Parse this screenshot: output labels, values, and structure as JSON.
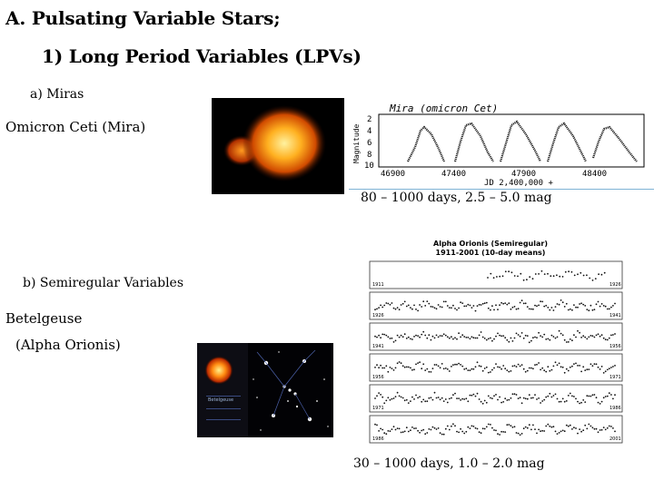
{
  "slide": {
    "title_line1": "A. Pulsating Variable Stars;",
    "title_line2": "1) Long Period Variables (LPVs)",
    "miras_heading": "a) Miras",
    "mira_star": "Omicron Ceti (Mira)",
    "mira_caption": "80 – 1000 days, 2.5 – 5.0 mag",
    "semireg_heading": "b) Semiregular Variables",
    "betelgeuse_line1": "Betelgeuse",
    "betelgeuse_line2": "(Alpha Orionis)",
    "semireg_caption": "30 – 1000 days, 1.0 – 2.0 mag"
  },
  "mira_plot": {
    "title": "Mira (omicron Cet)",
    "ylabel": "Magnitude",
    "xlabel": "JD 2,400,000 +",
    "yticks": [
      "2",
      "4",
      "6",
      "8",
      "10"
    ],
    "xticks": [
      "46900",
      "47400",
      "47900",
      "48400"
    ]
  },
  "orion_plot": {
    "title_line1": "Alpha Orionis (Semiregular)",
    "title_line2": "1911-2001 (10-day means)",
    "panels": [
      {
        "start": "1911",
        "end": "1926"
      },
      {
        "start": "1926",
        "end": "1941"
      },
      {
        "start": "1941",
        "end": "1956"
      },
      {
        "start": "1956",
        "end": "1971"
      },
      {
        "start": "1971",
        "end": "1986"
      },
      {
        "start": "1986",
        "end": "2001"
      }
    ]
  },
  "betelgeuse_photo": {
    "caption": "Betelgeuse"
  }
}
